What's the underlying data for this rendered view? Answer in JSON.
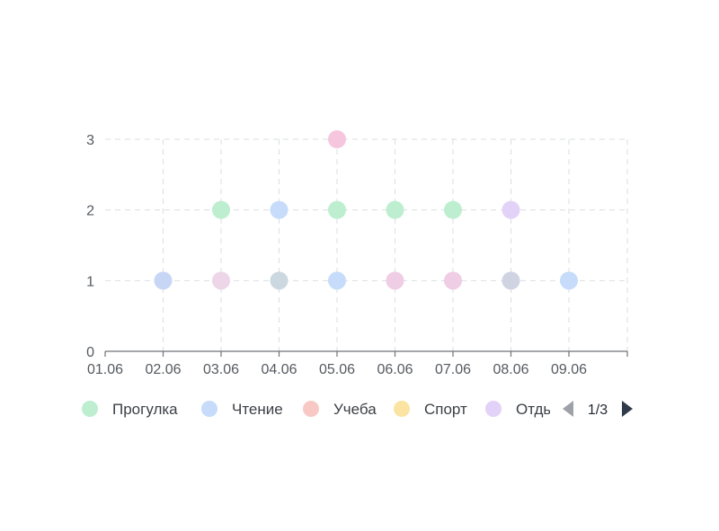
{
  "chart_data": {
    "type": "scatter",
    "x_categories": [
      "01.06",
      "02.06",
      "03.06",
      "04.06",
      "05.06",
      "06.06",
      "07.06",
      "08.06",
      "09.06"
    ],
    "y_ticks": [
      "0",
      "1",
      "2",
      "3"
    ],
    "ylim": [
      0,
      3
    ],
    "grid": true,
    "series": [
      {
        "name": "Прогулка",
        "color": "#bdeed0",
        "points": [
          [
            "03.06",
            2
          ],
          [
            "05.06",
            2
          ],
          [
            "06.06",
            2
          ],
          [
            "07.06",
            2
          ]
        ]
      },
      {
        "name": "Чтение",
        "color": "#c6dcfa",
        "points": [
          [
            "02.06",
            1
          ],
          [
            "04.06",
            2
          ],
          [
            "05.06",
            1
          ],
          [
            "09.06",
            1
          ]
        ]
      },
      {
        "name": "Учеба",
        "color": "#f8c9c4",
        "points": []
      },
      {
        "name": "Спорт",
        "color": "#fbe3a2",
        "points": []
      },
      {
        "name": "Отдых",
        "color": "#e2d2f7",
        "points": [
          [
            "03.06",
            1
          ],
          [
            "06.06",
            1
          ],
          [
            "07.06",
            1
          ],
          [
            "08.06",
            2
          ]
        ]
      },
      {
        "name": "",
        "color": "#f6c6df",
        "points": [
          [
            "05.06",
            3
          ]
        ]
      },
      {
        "name": "",
        "color": "#ccd8e0",
        "points": [
          [
            "04.06",
            1
          ],
          [
            "08.06",
            1
          ]
        ]
      }
    ],
    "overlay_colors": {
      "03.06|1": "#ecd6e8",
      "06.06|1": "#efcde5",
      "07.06|1": "#efcde5",
      "08.06|1": "#cfd3e2",
      "02.06|1": "#c8d6f5"
    },
    "legend": {
      "placement": "bottom",
      "visible_labels": [
        "Прогулка",
        "Чтение",
        "Учеба",
        "Спорт",
        "Отды"
      ],
      "page": "1/3",
      "prev_color": "#9ea2a8",
      "next_color": "#2f3b4a"
    }
  }
}
